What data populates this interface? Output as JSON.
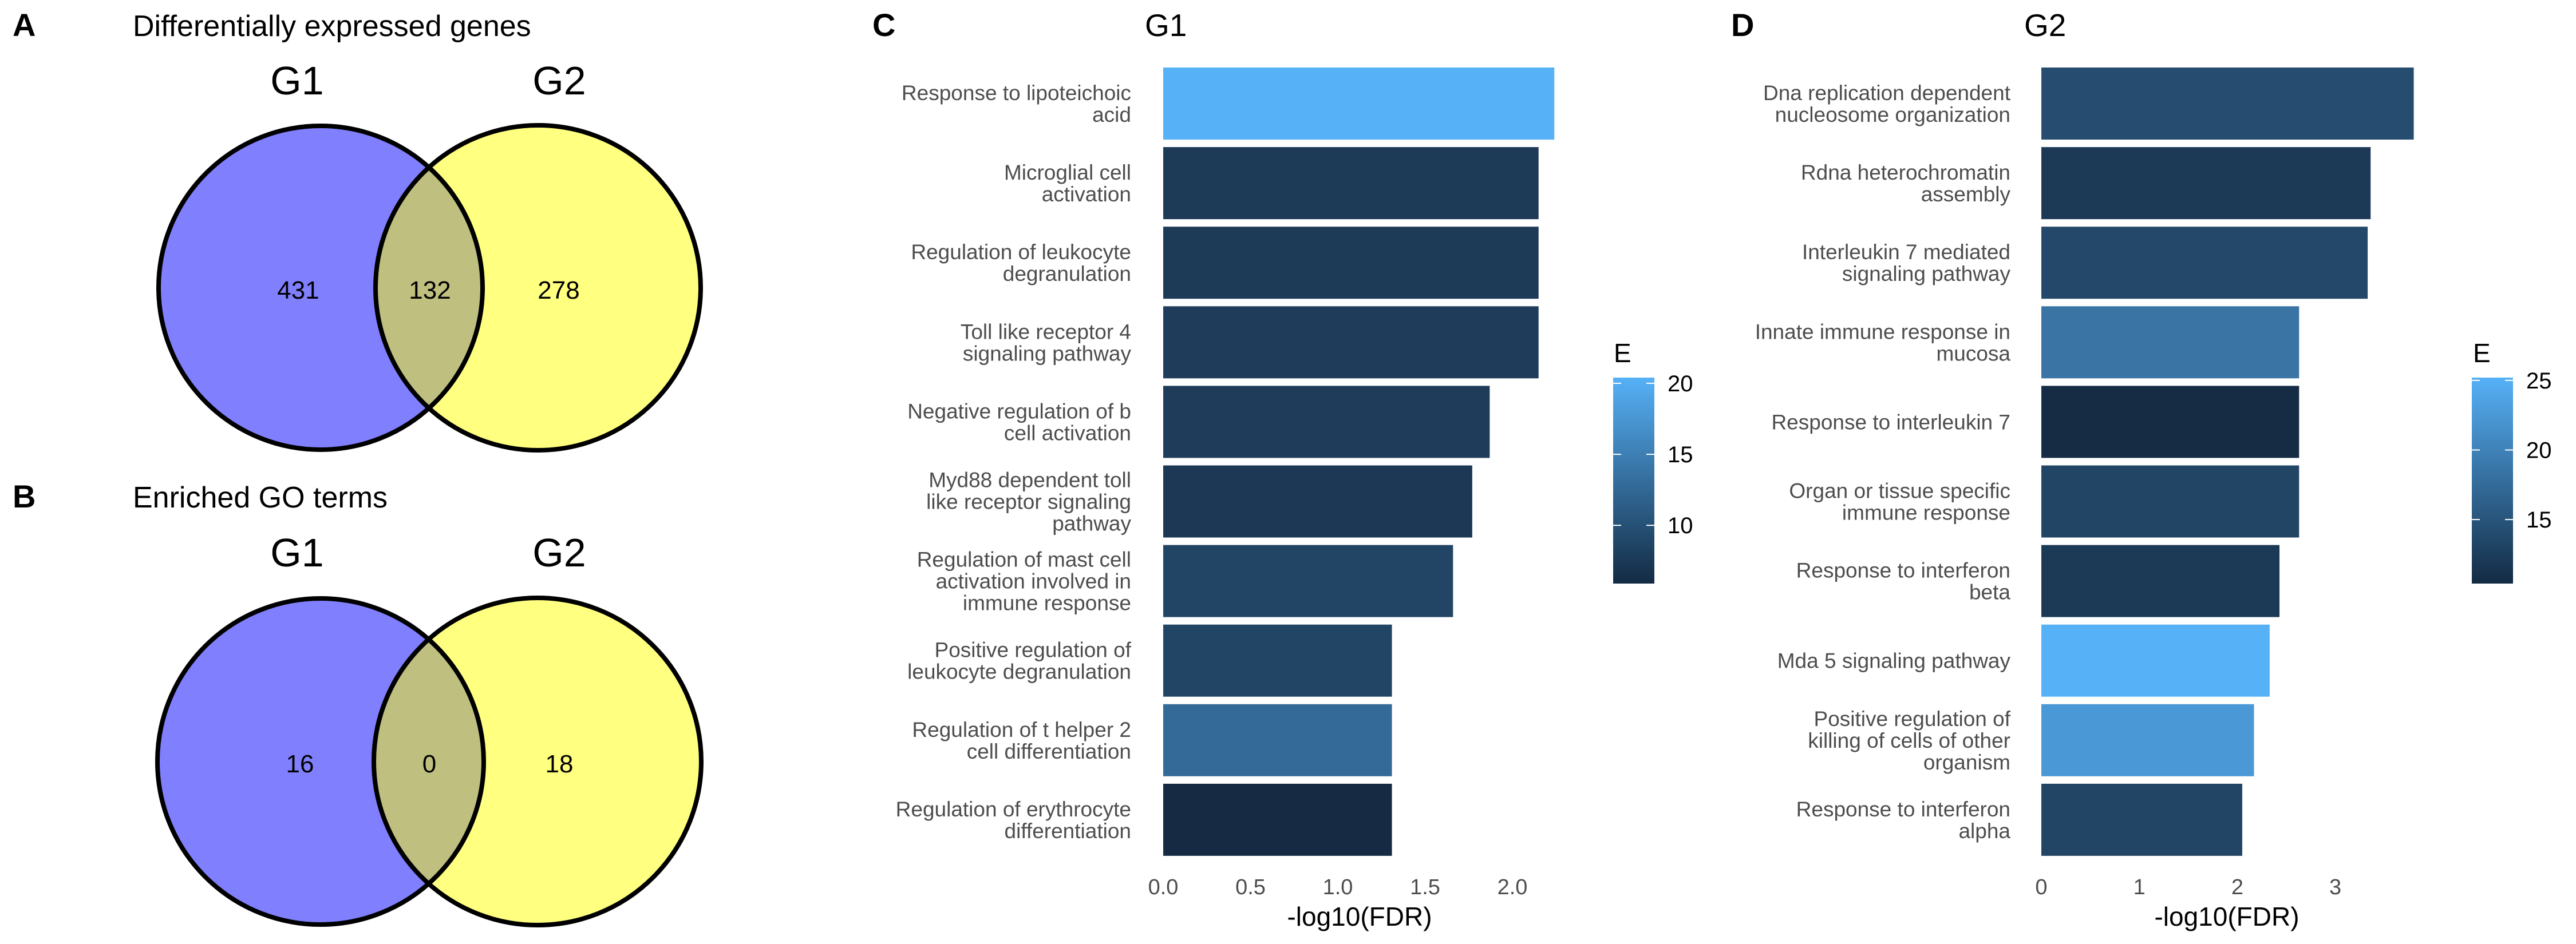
{
  "panels": {
    "a": {
      "letter": "A",
      "title": "Differentially expressed genes",
      "set1_label": "G1",
      "set2_label": "G2",
      "only_set1": "431",
      "overlap": "132",
      "only_set2": "278"
    },
    "b": {
      "letter": "B",
      "title": "Enriched GO terms",
      "set1_label": "G1",
      "set2_label": "G2",
      "only_set1": "16",
      "overlap": "0",
      "only_set2": "18"
    },
    "c": {
      "letter": "C"
    },
    "d": {
      "letter": "D"
    }
  },
  "colors": {
    "set1_fill": "#8080ff",
    "set2_fill": "#ffff80",
    "overlap_fill": "#bfbf80",
    "outline": "#000000",
    "scale_low": "#132B43",
    "scale_high": "#56B1F7"
  },
  "chart_data": [
    {
      "type": "bar",
      "orientation": "horizontal",
      "title": "G1",
      "xlabel": "-log10(FDR)",
      "ylabel": "",
      "xlim": [
        0,
        2.3
      ],
      "xticks": [
        0.0,
        0.5,
        1.0,
        1.5,
        2.0
      ],
      "xtick_labels": [
        "0.0",
        "0.5",
        "1.0",
        "1.5",
        "2.0"
      ],
      "grid": false,
      "categories": [
        [
          "Response to lipoteichoic",
          "acid"
        ],
        [
          "Microglial cell",
          "activation"
        ],
        [
          "Regulation of leukocyte",
          "degranulation"
        ],
        [
          "Toll like receptor 4",
          "signaling pathway"
        ],
        [
          "Negative regulation of b",
          "cell activation"
        ],
        [
          "Myd88 dependent toll",
          "like receptor signaling",
          "pathway"
        ],
        [
          "Regulation of mast cell",
          "activation involved in",
          "immune response"
        ],
        [
          "Positive regulation of",
          "leukocyte degranulation"
        ],
        [
          "Regulation of t helper 2",
          "cell differentiation"
        ],
        [
          "Regulation of erythrocyte",
          "differentiation"
        ]
      ],
      "values": [
        2.24,
        2.15,
        2.15,
        2.15,
        1.87,
        1.77,
        1.66,
        1.31,
        1.31,
        1.31
      ],
      "fill_variable": "E",
      "fill_values": [
        20.4,
        8.0,
        8.0,
        8.5,
        8.5,
        7.8,
        9.5,
        9.5,
        13.5,
        5.9
      ],
      "fill_colors": [
        "#56b1f7",
        "#1d3a56",
        "#1d3a56",
        "#1f3d5b",
        "#1f3d5b",
        "#1c3854",
        "#224566",
        "#224566",
        "#346a98",
        "#162b43"
      ],
      "legend": {
        "title": "E",
        "position": "right",
        "range": [
          5.9,
          20.4
        ],
        "ticks": [
          20,
          15,
          10
        ],
        "tick_labels": [
          "20",
          "15",
          "10"
        ]
      }
    },
    {
      "type": "bar",
      "orientation": "horizontal",
      "title": "G2",
      "xlabel": "-log10(FDR)",
      "ylabel": "",
      "xlim": [
        0,
        3.9
      ],
      "xticks": [
        0,
        1,
        2,
        3
      ],
      "xtick_labels": [
        "0",
        "1",
        "2",
        "3"
      ],
      "grid": false,
      "categories": [
        [
          "Dna replication dependent",
          "nucleosome organization"
        ],
        [
          "Rdna heterochromatin",
          "assembly"
        ],
        [
          "Interleukin 7 mediated",
          "signaling pathway"
        ],
        [
          "Innate immune response in",
          "mucosa"
        ],
        [
          "Response to interleukin 7"
        ],
        [
          "Organ or tissue specific",
          "immune response"
        ],
        [
          "Response to interferon",
          "beta"
        ],
        [
          "Mda 5 signaling pathway"
        ],
        [
          "Positive regulation of",
          "killing of cells of other",
          "organism"
        ],
        [
          "Response to interferon",
          "alpha"
        ]
      ],
      "values": [
        3.8,
        3.36,
        3.33,
        2.63,
        2.63,
        2.63,
        2.43,
        2.33,
        2.17,
        2.05
      ],
      "fill_variable": "E",
      "fill_values": [
        14.5,
        12.5,
        14.0,
        19.0,
        10.4,
        13.5,
        12.5,
        25.2,
        22.5,
        13.5
      ],
      "fill_colors": [
        "#264d70",
        "#1c3a56",
        "#23486a",
        "#3a74a5",
        "#162c45",
        "#224566",
        "#1c3a56",
        "#56b1f7",
        "#4a98d5",
        "#224566"
      ],
      "legend": {
        "title": "E",
        "position": "right",
        "range": [
          10.4,
          25.2
        ],
        "ticks": [
          25,
          20,
          15
        ],
        "tick_labels": [
          "25",
          "20",
          "15"
        ]
      }
    }
  ]
}
